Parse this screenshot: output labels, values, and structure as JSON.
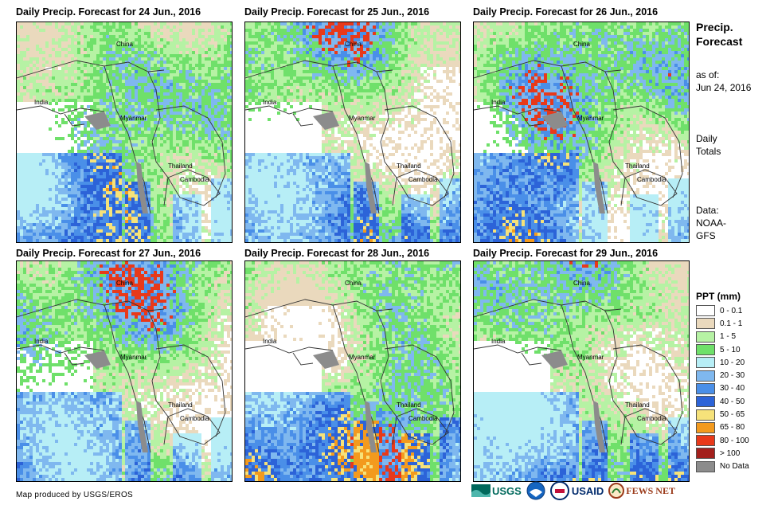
{
  "panels": [
    {
      "title": "Daily Precip. Forecast for 24 Jun., 2016",
      "seed": 11
    },
    {
      "title": "Daily Precip. Forecast for 25 Jun., 2016",
      "seed": 23
    },
    {
      "title": "Daily Precip. Forecast for 26 Jun., 2016",
      "seed": 37
    },
    {
      "title": "Daily Precip. Forecast for 27 Jun., 2016",
      "seed": 41
    },
    {
      "title": "Daily Precip. Forecast for 28 Jun., 2016",
      "seed": 53
    },
    {
      "title": "Daily Precip. Forecast for 29 Jun., 2016",
      "seed": 67
    }
  ],
  "country_labels": {
    "china": "China",
    "india": "India",
    "myanmar": "Myanmar",
    "thailand": "Thailand",
    "cambodia": "Cambodia"
  },
  "side": {
    "title_line1": "Precip.",
    "title_line2": "Forecast",
    "asof_label": "as of:",
    "asof_date": "Jun 24, 2016",
    "totals_line1": "Daily",
    "totals_line2": "Totals",
    "data_line1": "Data:",
    "data_line2": "NOAA-",
    "data_line3": "GFS"
  },
  "legend": {
    "title": "PPT (mm)",
    "items": [
      {
        "label": "0 - 0.1",
        "color": "#ffffff"
      },
      {
        "label": "0.1 - 1",
        "color": "#ead9bd"
      },
      {
        "label": "1 - 5",
        "color": "#b6f2a4"
      },
      {
        "label": "5 - 10",
        "color": "#6fe06a"
      },
      {
        "label": "10 - 20",
        "color": "#b7eef6"
      },
      {
        "label": "20 - 30",
        "color": "#7fb8ef"
      },
      {
        "label": "30 - 40",
        "color": "#4a8fe8"
      },
      {
        "label": "40 - 50",
        "color": "#2c63d8"
      },
      {
        "label": "50 - 65",
        "color": "#f6e27a"
      },
      {
        "label": "65 - 80",
        "color": "#f39a1e"
      },
      {
        "label": "80 - 100",
        "color": "#e8391a"
      },
      {
        "label": "> 100",
        "color": "#a3201c"
      },
      {
        "label": "No Data",
        "color": "#8c8c8c"
      }
    ]
  },
  "credit": "Map produced by USGS/EROS",
  "logos": {
    "usgs": "USGS",
    "usaid": "USAID",
    "fewsnet": "FEWS NET"
  }
}
